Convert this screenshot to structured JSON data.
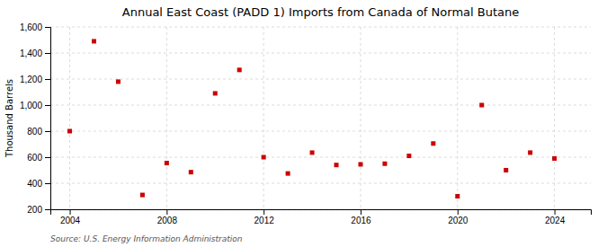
{
  "chart_data": {
    "type": "scatter",
    "title": "Annual East Coast (PADD 1) Imports from Canada of Normal Butane",
    "ylabel": "Thousand Barrels",
    "annotations": [
      "Source: U.S. Energy Information Administration"
    ],
    "x": [
      2004,
      2005,
      2006,
      2007,
      2008,
      2009,
      2010,
      2011,
      2012,
      2013,
      2014,
      2015,
      2016,
      2017,
      2018,
      2019,
      2020,
      2021,
      2022,
      2023,
      2024
    ],
    "values": [
      800,
      1490,
      1180,
      310,
      555,
      485,
      1090,
      1270,
      600,
      475,
      635,
      540,
      545,
      550,
      610,
      705,
      300,
      1000,
      500,
      635,
      590
    ],
    "color": "#cc0000",
    "marker": "square",
    "grid": true,
    "xlim": [
      2003.2,
      2025.5
    ],
    "xticks": [
      2004,
      2008,
      2012,
      2016,
      2020,
      2024
    ],
    "ylim": [
      200,
      1600
    ],
    "yticks": [
      200,
      400,
      600,
      800,
      {
        "value": 1000,
        "label": "1,000"
      },
      {
        "value": 1200,
        "label": "1,200"
      },
      {
        "value": 1400,
        "label": "1,400"
      },
      {
        "value": 1600,
        "label": "1,600"
      }
    ]
  }
}
